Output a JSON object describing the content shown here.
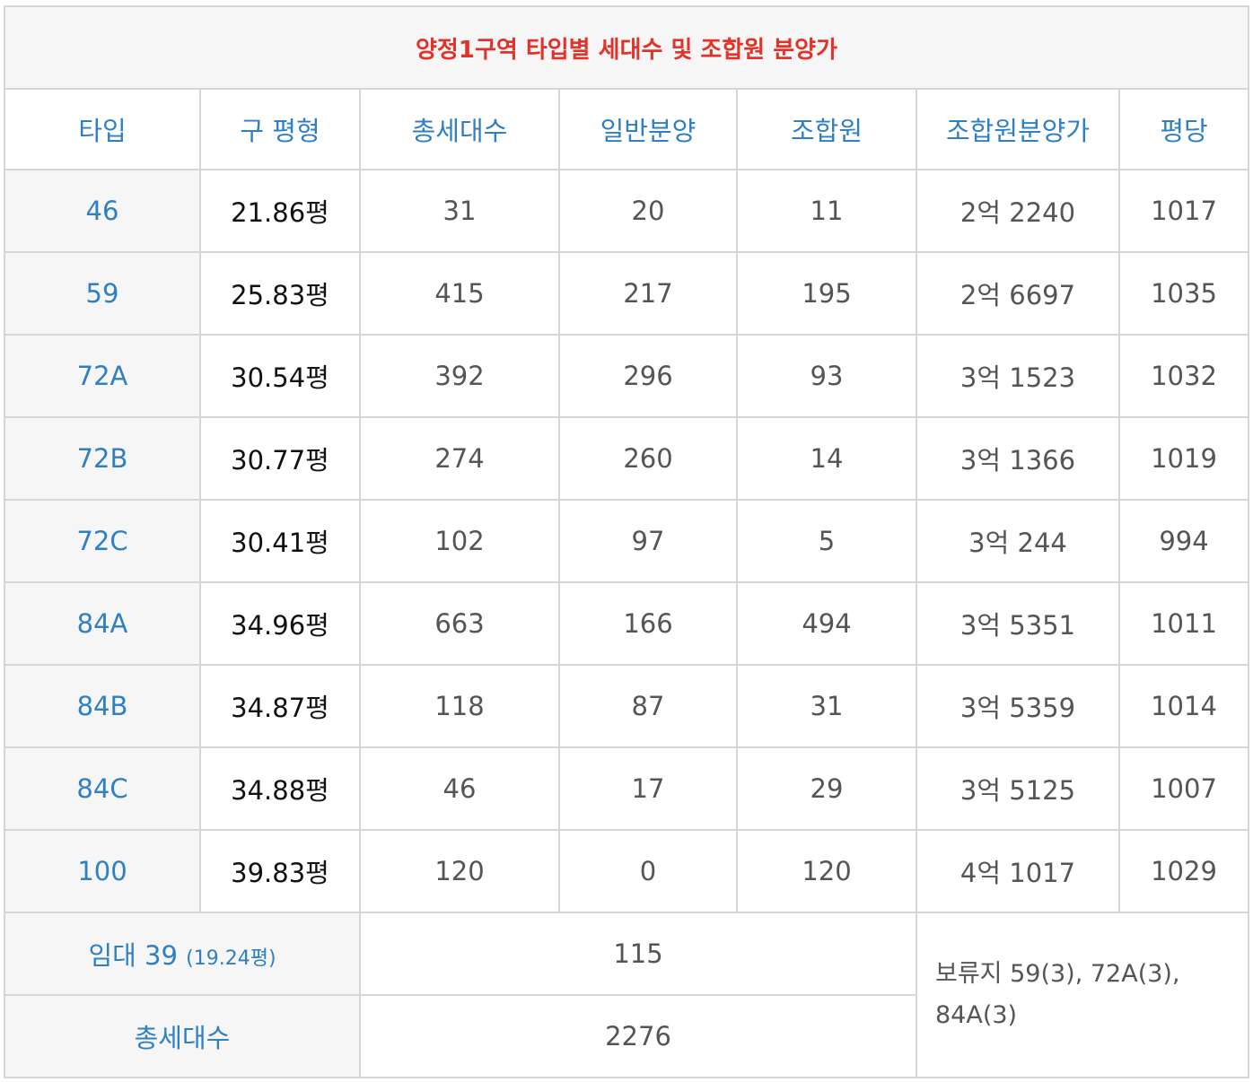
{
  "title": "양정1구역 타입별 세대수 및 조합원 분양가",
  "headers": [
    "타입",
    "구 평형",
    "총세대수",
    "일반분양",
    "조합원",
    "조합원분양가",
    "평당"
  ],
  "rows": [
    [
      "46",
      "21.86평",
      "31",
      "20",
      "11",
      "2억 2240",
      "1017"
    ],
    [
      "59",
      "25.83평",
      "415",
      "217",
      "195",
      "2억 6697",
      "1035"
    ],
    [
      "72A",
      "30.54평",
      "392",
      "296",
      "93",
      "3억 1523",
      "1032"
    ],
    [
      "72B",
      "30.77평",
      "274",
      "260",
      "14",
      "3억 1366",
      "1019"
    ],
    [
      "72C",
      "30.41평",
      "102",
      "97",
      "5",
      "3억 244",
      "994"
    ],
    [
      "84A",
      "34.96평",
      "663",
      "166",
      "494",
      "3억 5351",
      "1011"
    ],
    [
      "84B",
      "34.87평",
      "118",
      "87",
      "31",
      "3억 5359",
      "1014"
    ],
    [
      "84C",
      "34.88평",
      "46",
      "17",
      "29",
      "3억 5125",
      "1007"
    ],
    [
      "100",
      "39.83평",
      "120",
      "0",
      "120",
      "4억 1017",
      "1029"
    ]
  ],
  "rental": {
    "label": "임대 39",
    "sub": "(19.24평)",
    "value": "115"
  },
  "total": {
    "label": "총세대수",
    "value": "2276"
  },
  "note": "보류지 59(3), 72A(3), 84A(3)"
}
